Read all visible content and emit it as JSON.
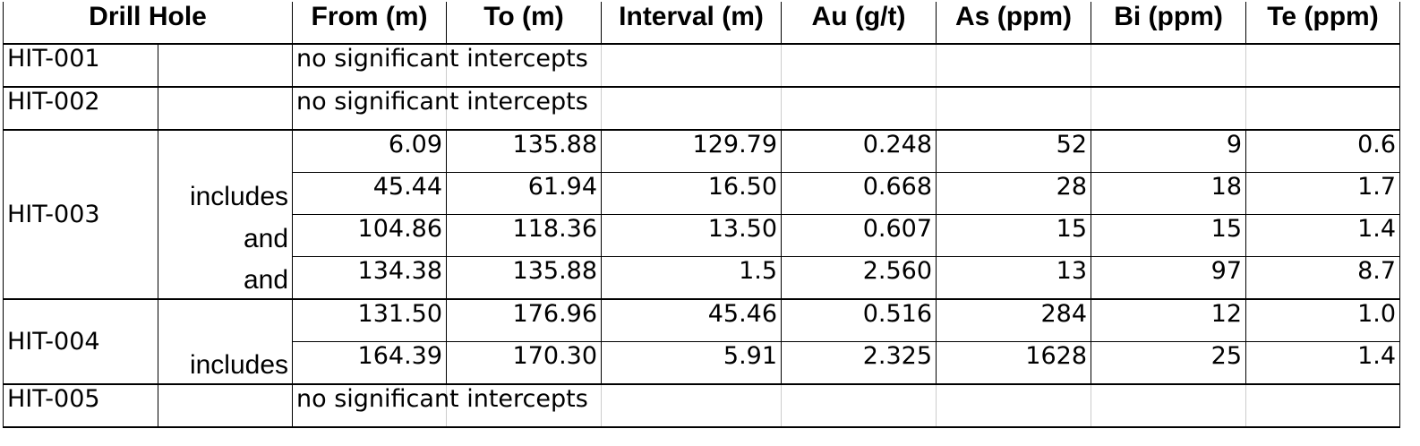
{
  "header": {
    "drill_hole": "Drill Hole",
    "columns": [
      "From (m)",
      "To (m)",
      "Interval (m)",
      "Au (g/t)",
      "As (ppm)",
      "Bi (ppm)",
      "Te (ppm)"
    ]
  },
  "holes": [
    {
      "name": "HIT-001",
      "note": "no significant intercepts"
    },
    {
      "name": "HIT-002",
      "note": "no significant intercepts"
    },
    {
      "name": "HIT-003",
      "intervals": [
        {
          "values": [
            "6.09",
            "135.88",
            "129.79",
            "0.248",
            "52",
            "9",
            "0.6"
          ]
        },
        {
          "qualifier": "includes",
          "values": [
            "45.44",
            "61.94",
            "16.50",
            "0.668",
            "28",
            "18",
            "1.7"
          ]
        },
        {
          "qualifier": "and",
          "values": [
            "104.86",
            "118.36",
            "13.50",
            "0.607",
            "15",
            "15",
            "1.4"
          ]
        },
        {
          "qualifier": "and",
          "values": [
            "134.38",
            "135.88",
            "1.5",
            "2.560",
            "13",
            "97",
            "8.7"
          ]
        }
      ]
    },
    {
      "name": "HIT-004",
      "intervals": [
        {
          "values": [
            "131.50",
            "176.96",
            "45.46",
            "0.516",
            "284",
            "12",
            "1.0"
          ]
        },
        {
          "qualifier": "includes",
          "values": [
            "164.39",
            "170.30",
            "5.91",
            "2.325",
            "1628",
            "25",
            "1.4"
          ]
        }
      ]
    },
    {
      "name": "HIT-005",
      "note": "no significant intercepts"
    }
  ]
}
